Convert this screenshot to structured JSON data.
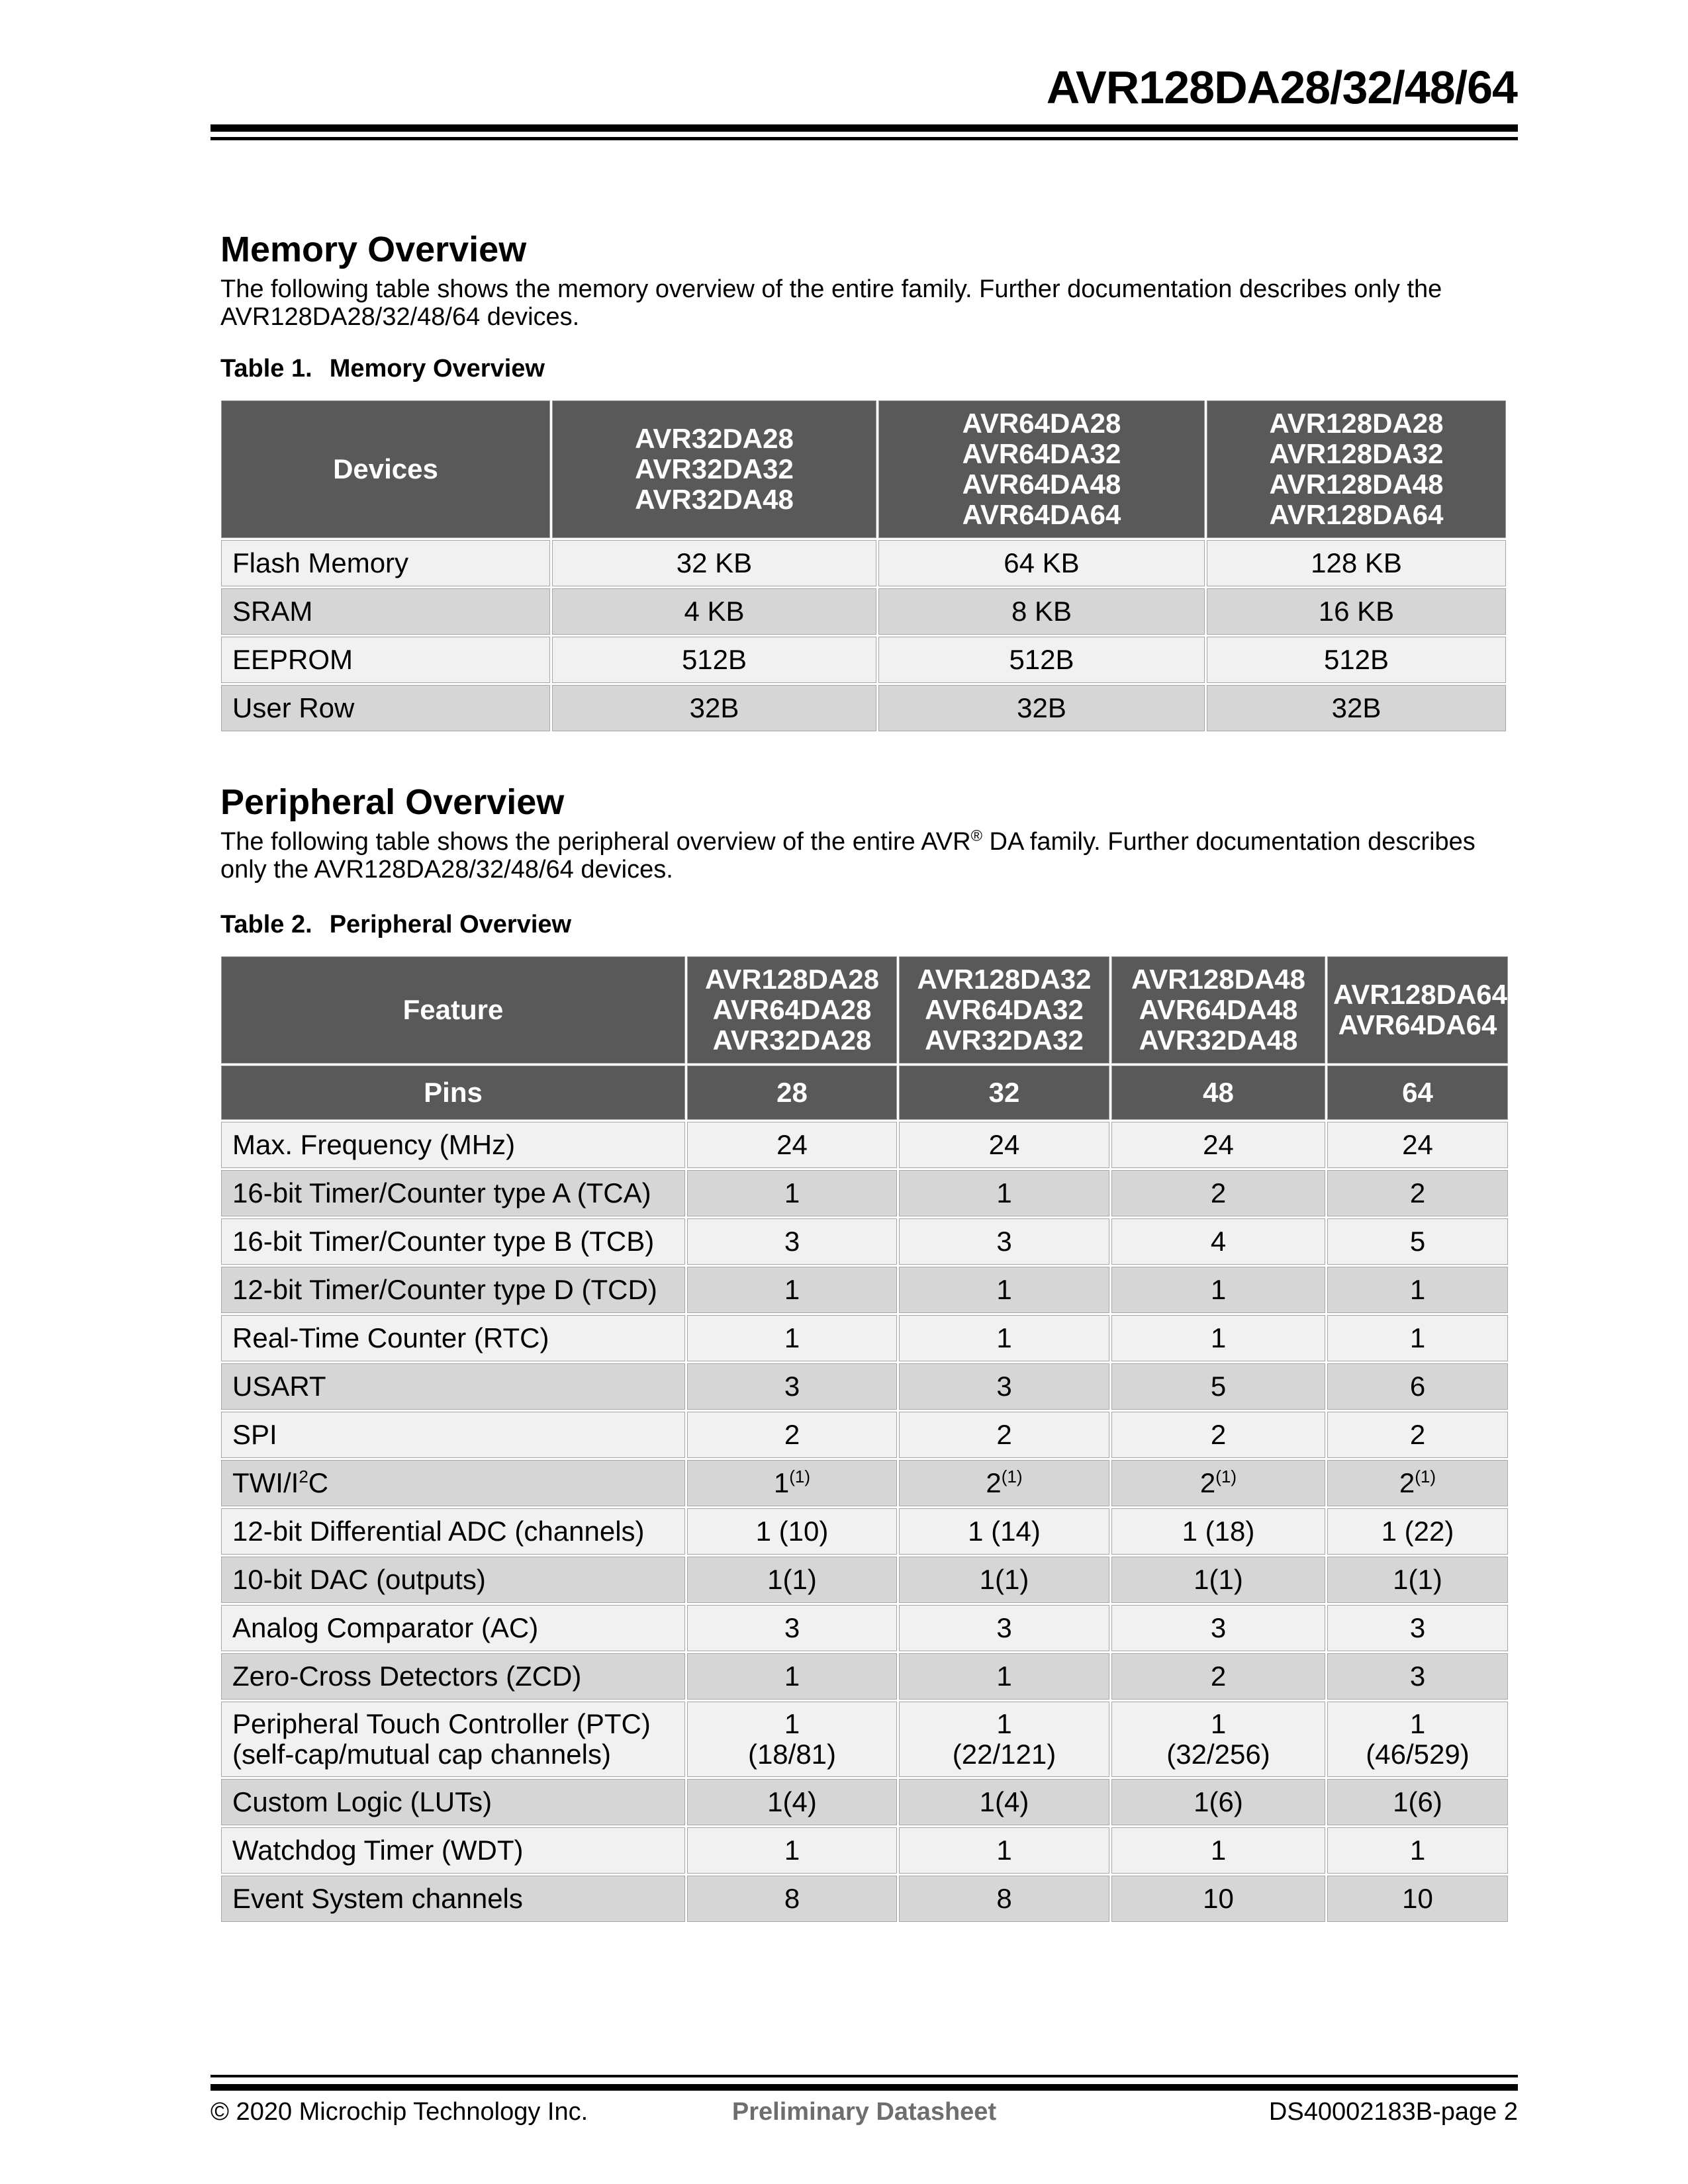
{
  "header": {
    "title": "AVR128DA28/32/48/64"
  },
  "sections": {
    "memory": {
      "heading": "Memory Overview",
      "paragraph_lines": [
        "The following table shows the memory overview of the entire family. Further documentation describes only the",
        "AVR128DA28/32/48/64 devices."
      ],
      "caption_label": "Table 1.",
      "caption_title": "Memory Overview"
    },
    "peripheral": {
      "heading": "Peripheral Overview",
      "paragraph_lines": [
        "The following table shows the peripheral overview of the entire AVR{{®}} DA family. Further documentation describes",
        "only the AVR128DA28/32/48/64 devices."
      ],
      "caption_label": "Table 2.",
      "caption_title": "Peripheral Overview"
    }
  },
  "tables": {
    "t1": {
      "name": "memory-overview-table",
      "header": [
        "Devices",
        [
          "AVR32DA28",
          "AVR32DA32",
          "AVR32DA48"
        ],
        [
          "AVR64DA28",
          "AVR64DA32",
          "AVR64DA48",
          "AVR64DA64"
        ],
        [
          "AVR128DA28",
          "AVR128DA32",
          "AVR128DA48",
          "AVR128DA64"
        ]
      ],
      "rows": [
        [
          "Flash Memory",
          "32 KB",
          "64 KB",
          "128 KB"
        ],
        [
          "SRAM",
          "4 KB",
          "8 KB",
          "16 KB"
        ],
        [
          "EEPROM",
          "512B",
          "512B",
          "512B"
        ],
        [
          "User Row",
          "32B",
          "32B",
          "32B"
        ]
      ]
    },
    "t2": {
      "name": "peripheral-overview-table",
      "header": [
        "Feature",
        [
          "AVR128DA28",
          "AVR64DA28",
          "AVR32DA28"
        ],
        [
          "AVR128DA32",
          "AVR64DA32",
          "AVR32DA32"
        ],
        [
          "AVR128DA48",
          "AVR64DA48",
          "AVR32DA48"
        ],
        [
          "AVR128DA64",
          "AVR64DA64"
        ]
      ],
      "subheader": [
        "Pins",
        "28",
        "32",
        "48",
        "64"
      ],
      "rows": [
        [
          "Max. Frequency (MHz)",
          "24",
          "24",
          "24",
          "24"
        ],
        [
          "16-bit Timer/Counter type A (TCA)",
          "1",
          "1",
          "2",
          "2"
        ],
        [
          "16-bit Timer/Counter type B (TCB)",
          "3",
          "3",
          "4",
          "5"
        ],
        [
          "12-bit Timer/Counter type D (TCD)",
          "1",
          "1",
          "1",
          "1"
        ],
        [
          "Real-Time Counter (RTC)",
          "1",
          "1",
          "1",
          "1"
        ],
        [
          "USART",
          "3",
          "3",
          "5",
          "6"
        ],
        [
          "SPI",
          "2",
          "2",
          "2",
          "2"
        ],
        [
          "TWI/I{{2}}C",
          "1{{(1)}}",
          "2{{(1)}}",
          "2{{(1)}}",
          "2{{(1)}}"
        ],
        [
          "12-bit Differential ADC (channels)",
          "1 (10)",
          "1 (14)",
          "1 (18)",
          "1 (22)"
        ],
        [
          "10-bit DAC (outputs)",
          "1(1)",
          "1(1)",
          "1(1)",
          "1(1)"
        ],
        [
          "Analog Comparator (AC)",
          "3",
          "3",
          "3",
          "3"
        ],
        [
          "Zero-Cross Detectors (ZCD)",
          "1",
          "1",
          "2",
          "3"
        ],
        [
          "Peripheral Touch Controller (PTC) (self-cap/mutual cap channels)",
          "1\n(18/81)",
          "1\n(22/121)",
          "1\n(32/256)",
          "1\n(46/529)"
        ],
        [
          "Custom Logic (LUTs)",
          "1(4)",
          "1(4)",
          "1(6)",
          "1(6)"
        ],
        [
          "Watchdog Timer (WDT)",
          "1",
          "1",
          "1",
          "1"
        ],
        [
          "Event System channels",
          "8",
          "8",
          "10",
          "10"
        ]
      ]
    }
  },
  "footer": {
    "copyright": "© 2020 Microchip Technology Inc.",
    "center": "Preliminary Datasheet",
    "right": "DS40002183B-page 2"
  },
  "colors": {
    "table_header_bg": "#595959",
    "table_header_text": "#ffffff",
    "row_light": "#f1f1f1",
    "row_gray": "#d6d6d6",
    "cell_border": "#a6a6a6",
    "footer_center_text": "#6e6e6e",
    "rule": "#000000"
  }
}
